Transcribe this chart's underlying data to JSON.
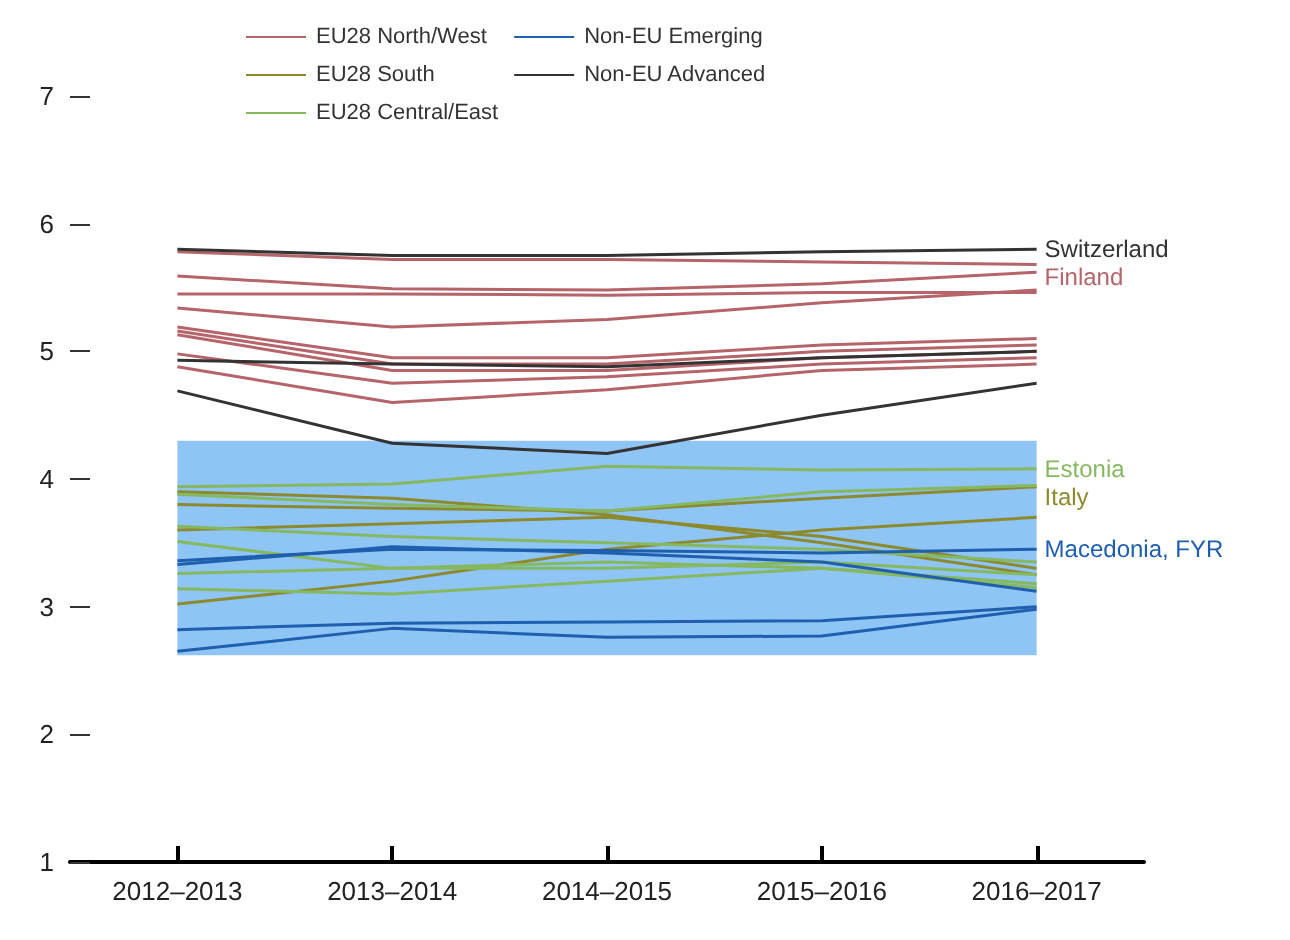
{
  "chart_data": {
    "type": "line",
    "categories": [
      "2012–2013",
      "2013–2014",
      "2014–2015",
      "2015–2016",
      "2016–2017"
    ],
    "ylim": [
      1,
      7
    ],
    "yticks": [
      1,
      2,
      3,
      4,
      5,
      6,
      7
    ],
    "grid": false,
    "legend": "top left",
    "marker": "none",
    "line_style": "solid",
    "bands": [
      {
        "axis": "y",
        "from": 2.62,
        "to": 4.3,
        "color": "#8ec5f5"
      }
    ],
    "annotations": [
      {
        "text": "Switzerland",
        "x": "2016–2017",
        "y": 5.8
      },
      {
        "text": "Finland",
        "x": "2016–2017",
        "y": 5.68
      },
      {
        "text": "Estonia",
        "x": "2016–2017",
        "y": 4.08
      },
      {
        "text": "Italy",
        "x": "2016–2017",
        "y": 3.94
      },
      {
        "text": "Macedonia, FYR",
        "x": "2016–2017",
        "y": 3.45
      }
    ],
    "series": [
      {
        "name": "EU28 North/West",
        "color": "#b5646a",
        "values": [
          5.78,
          5.72,
          5.72,
          5.7,
          5.68
        ]
      },
      {
        "color": "#b5646a",
        "values": [
          5.59,
          5.49,
          5.48,
          5.53,
          5.62
        ]
      },
      {
        "color": "#b5646a",
        "values": [
          5.45,
          5.45,
          5.44,
          5.46,
          5.46
        ]
      },
      {
        "color": "#b5646a",
        "values": [
          5.34,
          5.19,
          5.25,
          5.38,
          5.48
        ]
      },
      {
        "color": "#b5646a",
        "values": [
          5.19,
          4.95,
          4.95,
          5.05,
          5.1
        ]
      },
      {
        "color": "#b5646a",
        "values": [
          5.16,
          4.9,
          4.9,
          5.0,
          5.05
        ]
      },
      {
        "color": "#b5646a",
        "values": [
          5.13,
          4.85,
          4.85,
          4.95,
          5.0
        ]
      },
      {
        "color": "#b5646a",
        "values": [
          4.98,
          4.75,
          4.8,
          4.9,
          4.95
        ]
      },
      {
        "color": "#b5646a",
        "values": [
          4.88,
          4.6,
          4.7,
          4.85,
          4.9
        ]
      },
      {
        "name": "EU28 South",
        "color": "#8d8a2e",
        "values": [
          3.8,
          3.77,
          3.75,
          3.85,
          3.94
        ]
      },
      {
        "color": "#8d8a2e",
        "values": [
          3.9,
          3.85,
          3.72,
          3.5,
          3.25
        ]
      },
      {
        "color": "#8d8a2e",
        "values": [
          3.02,
          3.2,
          3.45,
          3.6,
          3.7
        ]
      },
      {
        "color": "#8d8a2e",
        "values": [
          3.6,
          3.65,
          3.7,
          3.55,
          3.3
        ]
      },
      {
        "name": "EU28 Central/East",
        "color": "#86b860",
        "values": [
          3.94,
          3.96,
          4.1,
          4.07,
          4.08
        ]
      },
      {
        "color": "#86b860",
        "values": [
          3.63,
          3.55,
          3.5,
          3.45,
          3.35
        ]
      },
      {
        "color": "#86b860",
        "values": [
          3.51,
          3.3,
          3.3,
          3.35,
          3.25
        ]
      },
      {
        "color": "#86b860",
        "values": [
          3.26,
          3.3,
          3.35,
          3.3,
          3.18
        ]
      },
      {
        "color": "#86b860",
        "values": [
          3.14,
          3.1,
          3.2,
          3.3,
          3.15
        ]
      },
      {
        "color": "#86b860",
        "values": [
          3.88,
          3.8,
          3.75,
          3.9,
          3.95
        ]
      },
      {
        "name": "Non-EU Emerging",
        "color": "#1f5fae",
        "values": [
          3.36,
          3.45,
          3.44,
          3.42,
          3.45
        ]
      },
      {
        "color": "#1f5fae",
        "values": [
          2.65,
          2.83,
          2.76,
          2.77,
          2.98
        ]
      },
      {
        "color": "#1f5fae",
        "values": [
          2.82,
          2.87,
          2.88,
          2.89,
          3.0
        ]
      },
      {
        "color": "#1f5fae",
        "values": [
          3.33,
          3.47,
          3.42,
          3.35,
          3.12
        ]
      },
      {
        "name": "Non-EU Advanced",
        "color": "#333333",
        "values": [
          5.8,
          5.75,
          5.75,
          5.78,
          5.8
        ]
      },
      {
        "color": "#333333",
        "values": [
          4.93,
          4.9,
          4.88,
          4.95,
          5.0
        ]
      },
      {
        "color": "#333333",
        "values": [
          4.69,
          4.28,
          4.2,
          4.5,
          4.75
        ]
      }
    ]
  }
}
